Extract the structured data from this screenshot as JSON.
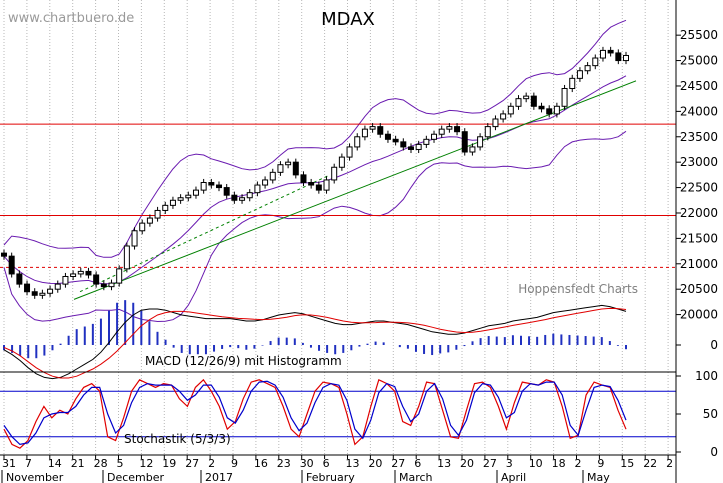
{
  "watermark": "www.chartbuero.de",
  "credit": "Hoppensfedt Charts",
  "chart_data": [
    {
      "panel": "price",
      "type": "candlestick",
      "title": "MDAX",
      "ylim": [
        19500,
        25700
      ],
      "y_ticks": [
        20000,
        20500,
        21000,
        21500,
        22000,
        22500,
        23000,
        23500,
        24000,
        24500,
        25000,
        25500
      ],
      "grid": "vertical dotted lines",
      "horizontal_levels": [
        {
          "value": 23750,
          "style": "solid",
          "color": "#e00000"
        },
        {
          "value": 21950,
          "style": "solid",
          "color": "#e00000"
        },
        {
          "value": 20930,
          "style": "dashed",
          "color": "#e00000"
        }
      ],
      "trendlines": [
        {
          "from": {
            "x": 74,
            "y": 20300
          },
          "to": {
            "x": 636,
            "y": 24600
          },
          "style": "solid",
          "color": "#008000"
        },
        {
          "from": {
            "x": 80,
            "y": 20450
          },
          "to": {
            "x": 330,
            "y": 22750
          },
          "style": "dashed",
          "color": "#008000"
        }
      ],
      "close_series": [
        21150,
        20800,
        20600,
        20450,
        20380,
        20420,
        20500,
        20600,
        20750,
        20800,
        20850,
        20780,
        20600,
        20550,
        20620,
        20900,
        21350,
        21650,
        21800,
        21900,
        22050,
        22150,
        22250,
        22300,
        22350,
        22450,
        22600,
        22550,
        22500,
        22350,
        22250,
        22300,
        22400,
        22550,
        22650,
        22800,
        22950,
        23000,
        22750,
        22600,
        22550,
        22450,
        22650,
        22900,
        23100,
        23300,
        23500,
        23650,
        23700,
        23550,
        23450,
        23400,
        23300,
        23250,
        23350,
        23450,
        23550,
        23650,
        23700,
        23600,
        23200,
        23300,
        23500,
        23700,
        23850,
        23950,
        24100,
        24250,
        24300,
        24100,
        24050,
        23950,
        24100,
        24450,
        24650,
        24800,
        24900,
        25050,
        25200,
        25150,
        25000,
        25100
      ]
    },
    {
      "panel": "macd",
      "type": "line",
      "title": "MACD (12/26/9) mit Histogramm",
      "y_ticks": [
        0
      ],
      "series": [
        {
          "name": "MACD",
          "color": "#000000",
          "values": [
            -40,
            -80,
            -130,
            -190,
            -240,
            -270,
            -280,
            -270,
            -240,
            -200,
            -160,
            -120,
            -60,
            20,
            110,
            190,
            250,
            290,
            300,
            300,
            290,
            270,
            250,
            240,
            230,
            220,
            220,
            220,
            220,
            210,
            200,
            200,
            210,
            230,
            250,
            260,
            270,
            260,
            240,
            220,
            200,
            180,
            170,
            170,
            180,
            190,
            200,
            200,
            190,
            180,
            170,
            150,
            130,
            110,
            100,
            90,
            90,
            100,
            120,
            140,
            160,
            170,
            180,
            200,
            210,
            220,
            230,
            250,
            270,
            280,
            290,
            300,
            310,
            320,
            330,
            320,
            300,
            280
          ]
        },
        {
          "name": "Signal",
          "color": "#e00000",
          "values": [
            -20,
            -50,
            -90,
            -140,
            -190,
            -230,
            -260,
            -275,
            -275,
            -260,
            -230,
            -200,
            -160,
            -110,
            -50,
            20,
            90,
            160,
            210,
            250,
            270,
            280,
            280,
            275,
            265,
            255,
            245,
            235,
            228,
            222,
            218,
            214,
            212,
            215,
            222,
            232,
            245,
            252,
            250,
            242,
            230,
            215,
            200,
            190,
            186,
            185,
            187,
            190,
            190,
            188,
            184,
            176,
            164,
            148,
            132,
            118,
            108,
            104,
            106,
            114,
            126,
            138,
            150,
            163,
            175,
            187,
            199,
            212,
            227,
            240,
            252,
            264,
            276,
            288,
            300,
            305,
            303,
            296
          ]
        }
      ]
    },
    {
      "panel": "stochastic",
      "type": "line",
      "title": "Stochastik (5/3/3)",
      "y_ticks": [
        0,
        50,
        100
      ],
      "ylim": [
        0,
        100
      ],
      "reference_levels": [
        80,
        20
      ],
      "series": [
        {
          "name": "%K",
          "color": "#e00000",
          "values": [
            30,
            10,
            5,
            15,
            40,
            60,
            45,
            55,
            50,
            70,
            85,
            90,
            80,
            20,
            15,
            45,
            80,
            95,
            90,
            85,
            90,
            88,
            70,
            60,
            85,
            95,
            80,
            60,
            30,
            40,
            70,
            92,
            95,
            90,
            85,
            60,
            30,
            20,
            50,
            80,
            92,
            90,
            85,
            50,
            10,
            20,
            60,
            95,
            90,
            80,
            40,
            35,
            60,
            92,
            90,
            55,
            20,
            18,
            55,
            90,
            92,
            85,
            60,
            30,
            65,
            92,
            90,
            88,
            95,
            92,
            60,
            18,
            22,
            75,
            92,
            88,
            85,
            55,
            30
          ]
        },
        {
          "name": "%D",
          "color": "#0000cc",
          "values": [
            35,
            20,
            10,
            12,
            25,
            45,
            50,
            52,
            52,
            60,
            75,
            85,
            85,
            50,
            25,
            35,
            65,
            85,
            90,
            88,
            88,
            88,
            80,
            68,
            75,
            88,
            88,
            72,
            45,
            38,
            55,
            80,
            92,
            93,
            88,
            72,
            45,
            28,
            38,
            65,
            85,
            90,
            88,
            68,
            30,
            18,
            42,
            78,
            90,
            86,
            60,
            40,
            50,
            80,
            90,
            70,
            35,
            22,
            42,
            78,
            90,
            88,
            72,
            45,
            52,
            80,
            90,
            88,
            92,
            92,
            75,
            35,
            22,
            55,
            85,
            88,
            86,
            68,
            42
          ]
        }
      ]
    },
    {
      "panel": "time_axis",
      "type": "axis",
      "day_ticks": [
        "31",
        "7",
        "14",
        "21",
        "28",
        "5",
        "12",
        "19",
        "27",
        "2",
        "9",
        "16",
        "23",
        "30",
        "6",
        "13",
        "20",
        "27",
        "6",
        "13",
        "20",
        "27",
        "3",
        "10",
        "18",
        "2",
        "9",
        "15",
        "22",
        "2"
      ],
      "month_labels": [
        "November",
        "December",
        "2017",
        "February",
        "March",
        "April",
        "May"
      ]
    }
  ]
}
